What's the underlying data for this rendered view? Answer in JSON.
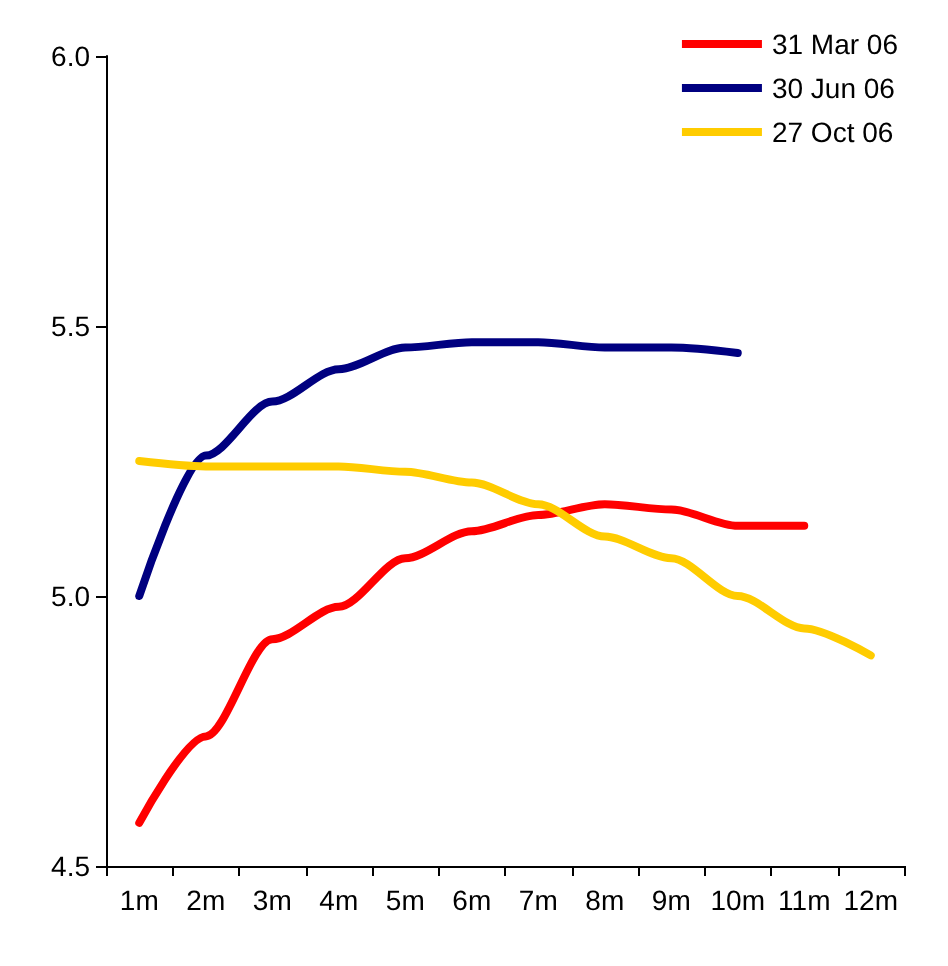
{
  "chart_data": {
    "type": "line",
    "categories": [
      "1m",
      "2m",
      "3m",
      "4m",
      "5m",
      "6m",
      "7m",
      "8m",
      "9m",
      "10m",
      "11m",
      "12m"
    ],
    "series": [
      {
        "name": "31 Mar 06",
        "color": "#ff0000",
        "values": [
          4.58,
          4.74,
          4.92,
          4.98,
          5.07,
          5.12,
          5.15,
          5.17,
          5.16,
          5.13,
          5.13,
          null
        ]
      },
      {
        "name": "30 Jun 06",
        "color": "#000080",
        "values": [
          5.0,
          5.26,
          5.36,
          5.42,
          5.46,
          5.47,
          5.47,
          5.46,
          5.46,
          5.45,
          null,
          null
        ]
      },
      {
        "name": "27 Oct 06",
        "color": "#ffcc00",
        "values": [
          5.25,
          5.24,
          5.24,
          5.24,
          5.23,
          5.21,
          5.17,
          5.11,
          5.07,
          5.0,
          4.94,
          4.89
        ]
      }
    ],
    "ylim": [
      4.5,
      6.0
    ],
    "yticks": [
      {
        "value": 4.5,
        "label": "4.5"
      },
      {
        "value": 5,
        "label": "5.0"
      },
      {
        "value": 5.5,
        "label": "5.5"
      },
      {
        "value": 6,
        "label": "6.0"
      }
    ],
    "grid": false,
    "legend": "top right",
    "marker": "none",
    "line_style": "solid"
  }
}
